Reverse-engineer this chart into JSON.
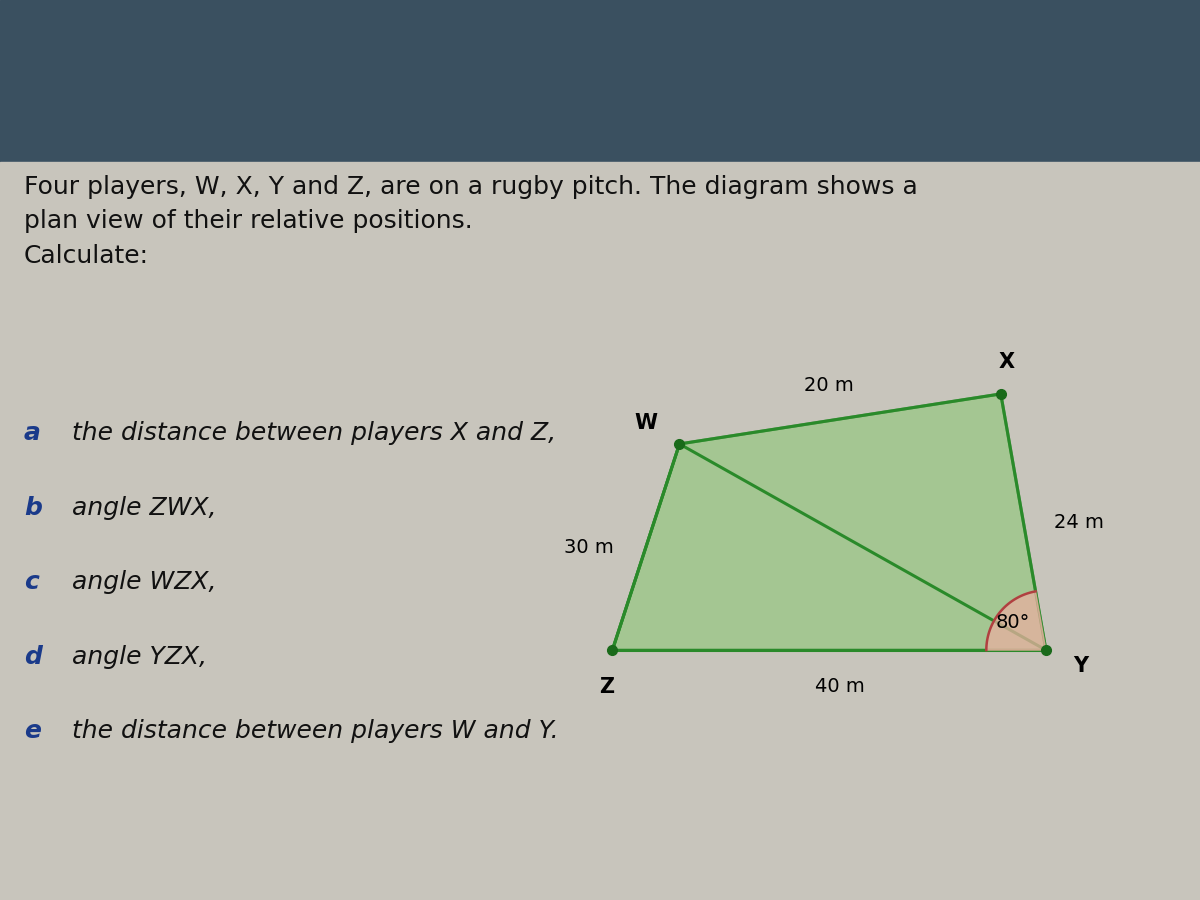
{
  "bg_color_top": "#3a5060",
  "bg_color_bottom": "#c8c5bc",
  "text_color": "#111111",
  "label_color_abcde": "#1a3a8a",
  "shape_fill": "#88c870",
  "shape_edge_color": "#2a8a2a",
  "shape_edge_width": 2.2,
  "dot_color": "#1a6a1a",
  "dot_size": 7,
  "angle_arc_color": "#b04040",
  "angle_arc_fill": "#e8b0a0",
  "WX_label": "20 m",
  "XY_label": "24 m",
  "YZ_label": "40 m",
  "WZ_label": "30 m",
  "angle_Y_label": "80°",
  "font_size_intro": 18,
  "font_size_items": 18,
  "font_size_measurements": 14,
  "font_size_player": 15
}
